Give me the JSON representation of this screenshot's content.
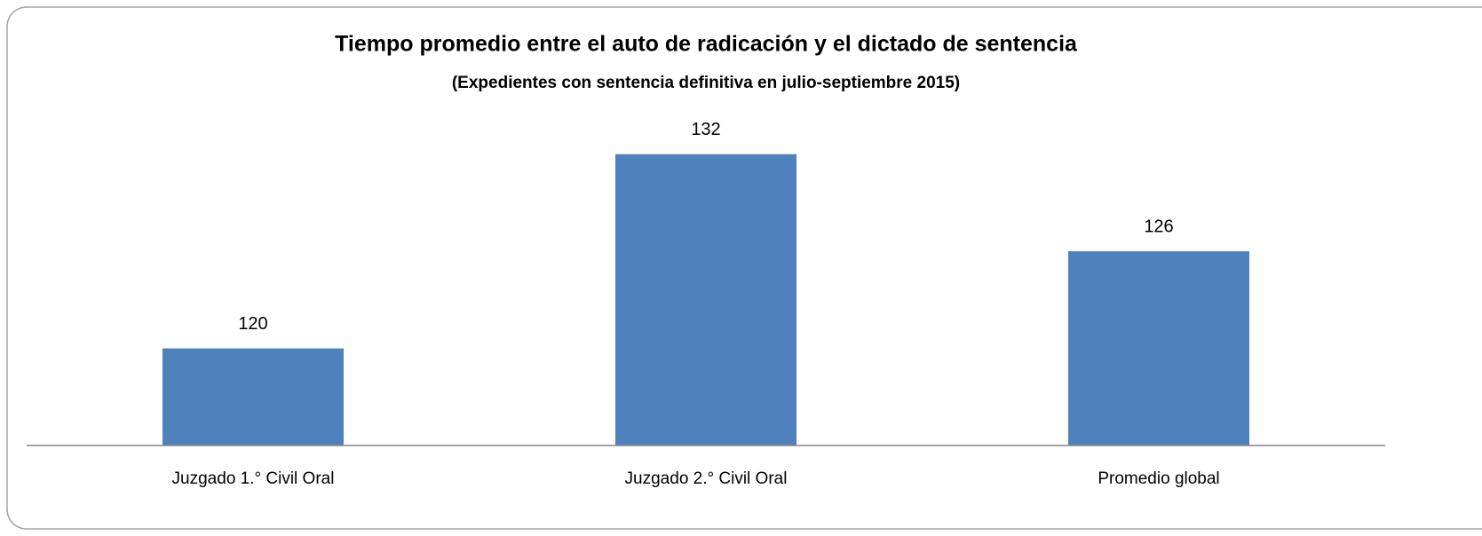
{
  "chart_data": {
    "type": "bar",
    "title": "Tiempo promedio entre el auto de radicación y el dictado de sentencia",
    "subtitle": "(Expedientes con sentencia definitiva en julio-septiembre 2015)",
    "categories": [
      "Juzgado 1.° Civil Oral",
      "Juzgado 2.° Civil Oral",
      "Promedio global"
    ],
    "values": [
      120,
      132,
      126
    ],
    "color": "#4f81bd",
    "ylim": [
      114,
      135
    ],
    "data_labels": true
  }
}
